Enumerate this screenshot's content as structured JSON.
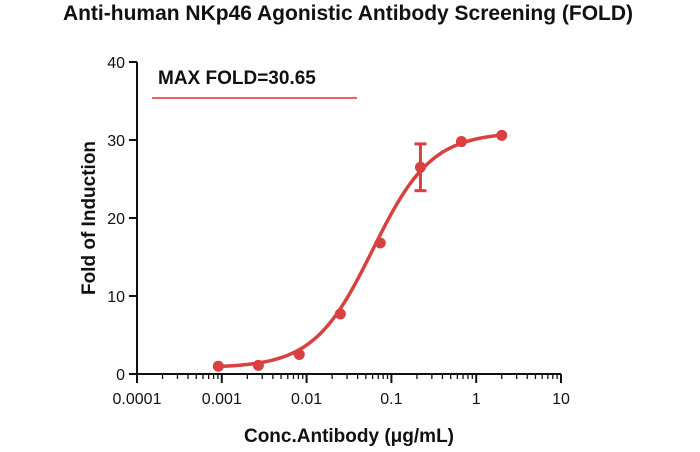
{
  "chart_data": {
    "type": "line",
    "title": "Anti-human NKp46 Agonistic Antibody Screening (FOLD)",
    "xlabel": "Conc.Antibody (μg/mL)",
    "ylabel": "Fold of Induction",
    "xscale": "log",
    "xlim": [
      0.0001,
      10
    ],
    "ylim": [
      0,
      40
    ],
    "xticks": [
      0.0001,
      0.001,
      0.01,
      0.1,
      1,
      10
    ],
    "xtick_labels": [
      "0.0001",
      "0.001",
      "0.01",
      "0.1",
      "1",
      "10"
    ],
    "yticks": [
      0,
      10,
      20,
      30,
      40
    ],
    "ytick_labels": [
      "0",
      "10",
      "20",
      "30",
      "40"
    ],
    "grid": false,
    "legend": "none",
    "series": [
      {
        "color": "#d94040",
        "points": [
          {
            "x": 0.00091,
            "y": 1.0
          },
          {
            "x": 0.0027,
            "y": 1.1
          },
          {
            "x": 0.0082,
            "y": 2.5
          },
          {
            "x": 0.025,
            "y": 7.7
          },
          {
            "x": 0.074,
            "y": 16.8
          },
          {
            "x": 0.22,
            "y": 26.5,
            "err": 3.0
          },
          {
            "x": 0.67,
            "y": 29.8
          },
          {
            "x": 2.0,
            "y": 30.6
          }
        ],
        "fit": {
          "bottom": 0.8,
          "top": 31.0,
          "ec50": 0.06,
          "hill": 1.25
        }
      }
    ],
    "annotations": [
      {
        "text": "MAX FOLD=30.65",
        "underline_color": "#e03030"
      }
    ]
  }
}
